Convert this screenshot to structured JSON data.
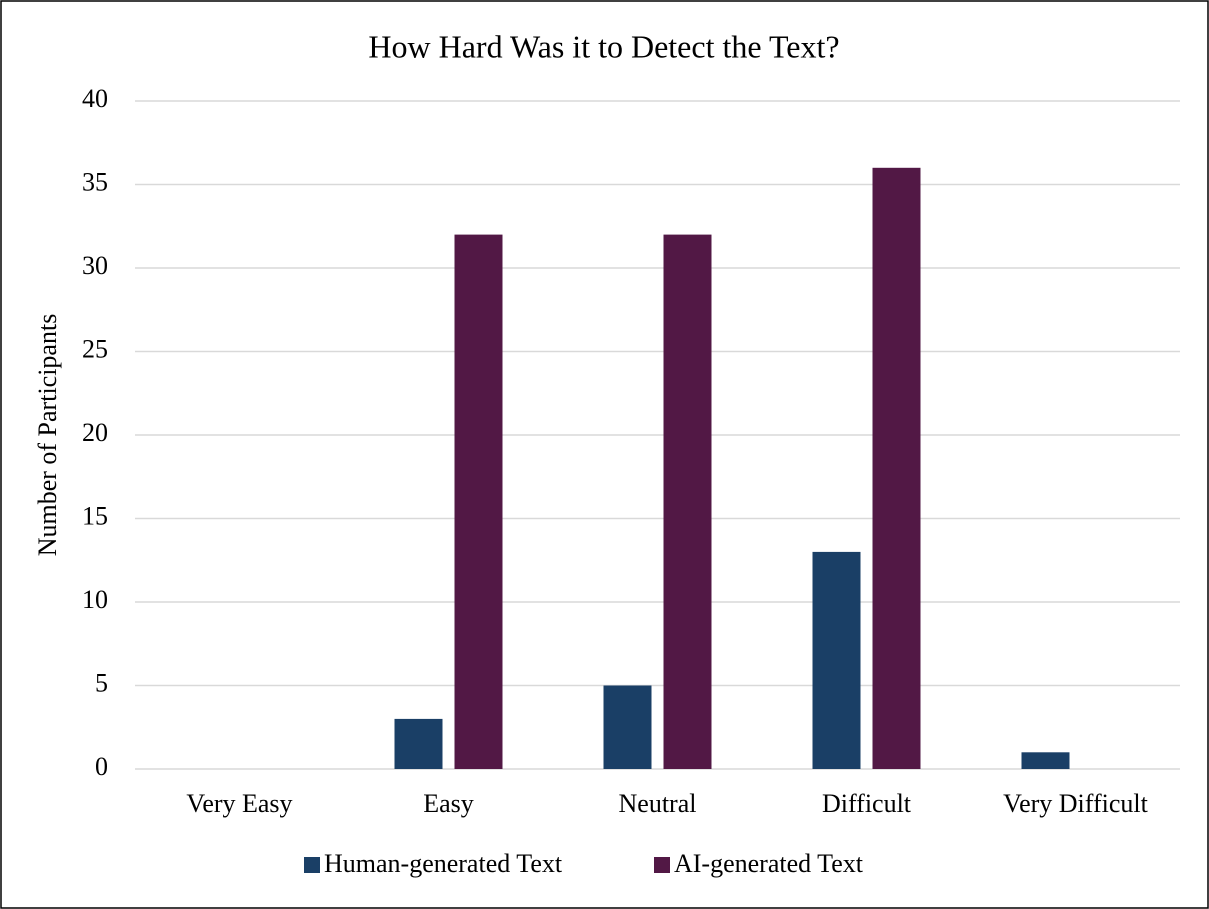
{
  "chart_data": {
    "type": "bar",
    "title": "How Hard Was it to Detect the Text?",
    "y_label": "Number of Participants",
    "categories": [
      "Very Easy",
      "Easy",
      "Neutral",
      "Difficult",
      "Very Difficult"
    ],
    "series": [
      {
        "name": "Human-generated Text",
        "color": "#1a3f66",
        "values": [
          0,
          3,
          5,
          13,
          1
        ]
      },
      {
        "name": "AI-generated Text",
        "color": "#521845",
        "values": [
          0,
          32,
          32,
          36,
          0
        ]
      }
    ],
    "ylim": [
      0,
      40
    ],
    "yticks": [
      0,
      5,
      10,
      15,
      20,
      25,
      30,
      35,
      40
    ],
    "grid": true,
    "legend": "bottom"
  }
}
